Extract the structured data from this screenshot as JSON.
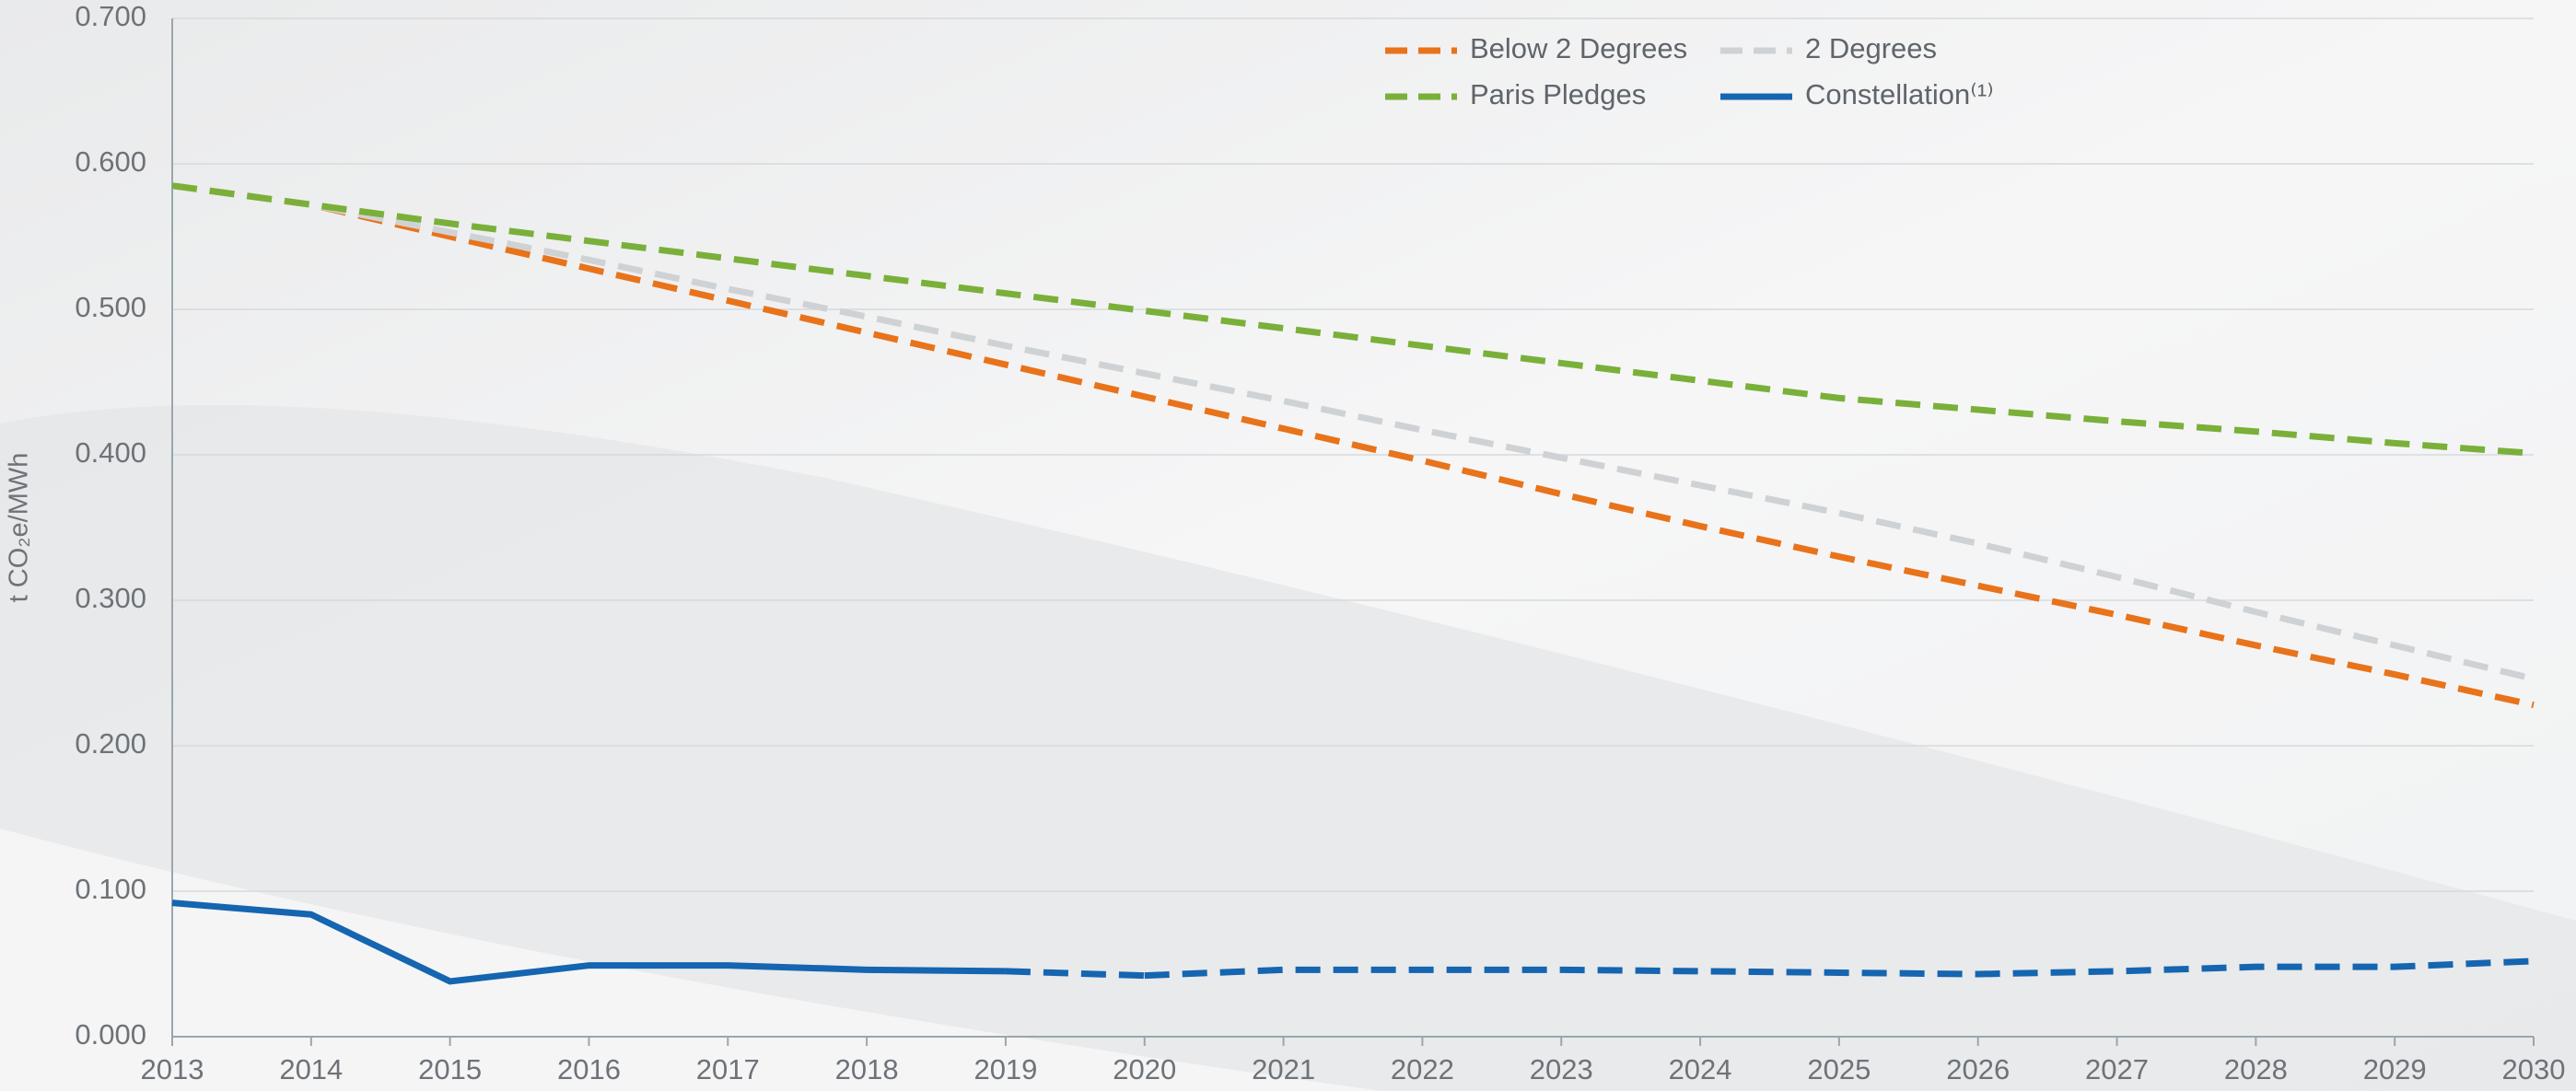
{
  "chart_data": {
    "type": "line",
    "y_label": "t CO₂e/MWh",
    "x": [
      2013,
      2014,
      2015,
      2016,
      2017,
      2018,
      2019,
      2020,
      2021,
      2022,
      2023,
      2024,
      2025,
      2026,
      2027,
      2028,
      2029,
      2030
    ],
    "xlim": [
      2013,
      2030
    ],
    "xticks": [
      2013,
      2014,
      2015,
      2016,
      2017,
      2018,
      2019,
      2020,
      2021,
      2022,
      2023,
      2024,
      2025,
      2026,
      2027,
      2028,
      2029,
      2030
    ],
    "ylim": [
      0,
      0.7
    ],
    "yticks": [
      {
        "value": 0,
        "label": "0.000"
      },
      {
        "value": 0.1,
        "label": "0.100"
      },
      {
        "value": 0.2,
        "label": "0.200"
      },
      {
        "value": 0.3,
        "label": "0.300"
      },
      {
        "value": 0.4,
        "label": "0.400"
      },
      {
        "value": 0.5,
        "label": "0.500"
      },
      {
        "value": 0.6,
        "label": "0.600"
      },
      {
        "value": 0.7,
        "label": "0.700"
      }
    ],
    "grid": true,
    "legend": "top",
    "series": [
      {
        "name": "Below 2 Degrees",
        "color": "#e8731a",
        "dashed": true,
        "values": [
          0.585,
          0.572,
          0.55,
          0.528,
          0.506,
          0.484,
          0.462,
          0.44,
          0.418,
          0.396,
          0.373,
          0.351,
          0.33,
          0.31,
          0.29,
          0.269,
          0.249,
          0.228
        ]
      },
      {
        "name": "2 Degrees",
        "color": "#cfd2d5",
        "dashed": true,
        "values": [
          0.585,
          0.572,
          0.553,
          0.534,
          0.514,
          0.495,
          0.475,
          0.456,
          0.437,
          0.417,
          0.398,
          0.379,
          0.36,
          0.339,
          0.316,
          0.292,
          0.269,
          0.246
        ]
      },
      {
        "name": "Paris Pledges",
        "color": "#7ab03a",
        "dashed": true,
        "values": [
          0.585,
          0.572,
          0.559,
          0.547,
          0.535,
          0.523,
          0.511,
          0.499,
          0.487,
          0.475,
          0.463,
          0.451,
          0.439,
          0.431,
          0.423,
          0.416,
          0.408,
          0.401
        ]
      },
      {
        "name": "Constellation⁽¹⁾",
        "color": "#1565b0",
        "dashed": false,
        "dashed_after": 2019,
        "values": [
          0.092,
          0.084,
          0.038,
          0.049,
          0.049,
          0.046,
          0.045,
          0.042,
          0.046,
          0.046,
          0.046,
          0.045,
          0.044,
          0.043,
          0.045,
          0.048,
          0.048,
          0.052
        ]
      }
    ]
  }
}
